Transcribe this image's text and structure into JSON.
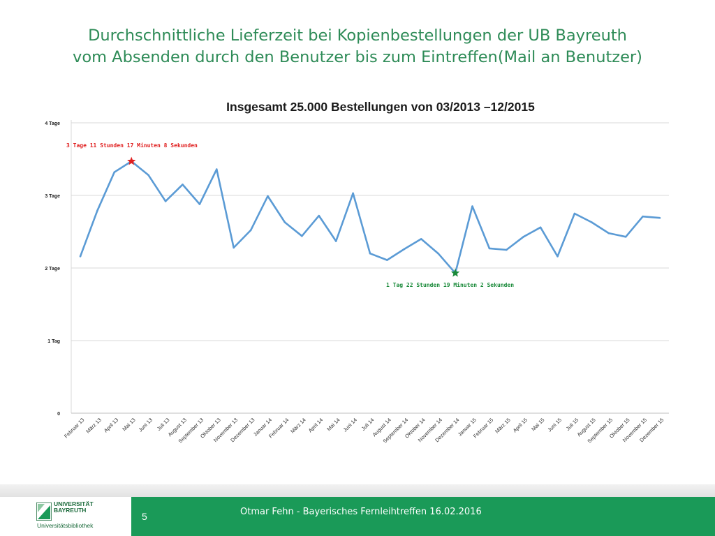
{
  "slide": {
    "title_line1": "Durchschnittliche Lieferzeit bei Kopienbestellungen der UB Bayreuth",
    "title_line2": "vom Absenden durch den Benutzer bis zum Eintreffen(Mail an Benutzer)",
    "title_color": "#2e8b57"
  },
  "footer": {
    "page_number": "5",
    "text": "Otmar Fehn - Bayerisches Fernleihtreffen 16.02.2016",
    "logo_line1": "UNIVERSITÄT",
    "logo_line2": "BAYREUTH",
    "logo_sub": "Universitätsbibliothek",
    "color": "#1a9a58"
  },
  "chart_data": {
    "type": "line",
    "title": "Insgesamt 25.000 Bestellungen von 03/2013 –12/2015",
    "y_unit": "Tage",
    "ylim": [
      0,
      4
    ],
    "y_ticks": [
      {
        "value": 0,
        "label": "0"
      },
      {
        "value": 1,
        "label": "1 Tag"
      },
      {
        "value": 2,
        "label": "2 Tage"
      },
      {
        "value": 3,
        "label": "3 Tage"
      },
      {
        "value": 4,
        "label": "4 Tage"
      }
    ],
    "grid": true,
    "line_color": "#5b9bd5",
    "categories": [
      "Februar 13",
      "März 13",
      "April 13",
      "Mai 13",
      "Juni 13",
      "Juli 13",
      "August 13",
      "September 13",
      "Oktober 13",
      "November 13",
      "Dezember 13",
      "Januar 14",
      "Februar 14",
      "März 14",
      "April 14",
      "Mai 14",
      "Juni 14",
      "Juli 14",
      "August 14",
      "September 14",
      "Oktober 14",
      "November 14",
      "Dezember 14",
      "Januar 15",
      "Februar 15",
      "März 15",
      "April 15",
      "Mai 15",
      "Juni 15",
      "Juli 15",
      "August 15",
      "September 15",
      "Oktober 15",
      "November 15",
      "Dezember 15"
    ],
    "values": [
      2.16,
      2.79,
      3.32,
      3.47,
      3.28,
      2.92,
      3.15,
      2.88,
      3.36,
      2.28,
      2.52,
      2.99,
      2.63,
      2.44,
      2.72,
      2.37,
      3.03,
      2.2,
      2.11,
      2.26,
      2.4,
      2.2,
      1.93,
      2.85,
      2.27,
      2.25,
      2.43,
      2.56,
      2.16,
      2.75,
      2.63,
      2.48,
      2.43,
      2.71,
      2.69
    ],
    "annotations": [
      {
        "label": "3 Tage 11 Stunden 17 Minuten 8 Sekunden",
        "index": 3,
        "value": 3.47,
        "color": "#e02020",
        "marker": "star"
      },
      {
        "label": "1 Tag 22 Stunden 19 Minuten 2 Sekunden",
        "index": 22,
        "value": 1.93,
        "color": "#1a8a3a",
        "marker": "star"
      }
    ]
  }
}
